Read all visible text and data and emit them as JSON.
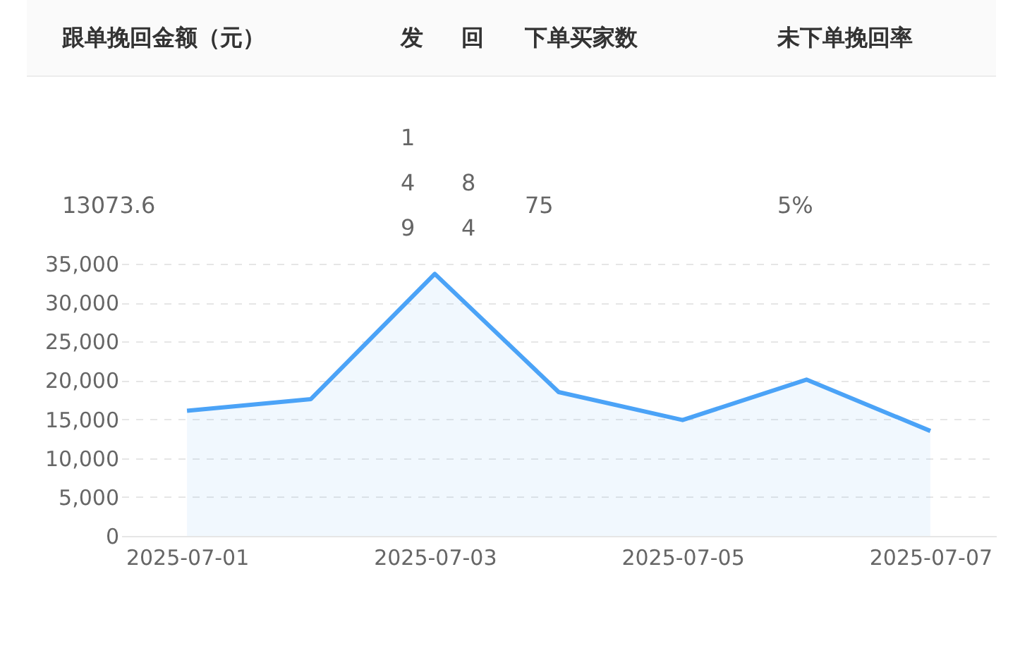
{
  "chart_data": [
    {
      "type": "other",
      "annotations": [
        "跟单挽回金额（元）",
        "发",
        "回",
        "下单买家数",
        "未下单挽回率",
        "13073.6",
        "149",
        "84",
        "75",
        "5%"
      ]
    },
    {
      "type": "area",
      "categories": [
        "2025-07-01",
        null,
        "2025-07-03",
        null,
        "2025-07-05",
        null,
        "2025-07-07"
      ],
      "series": [
        {
          "color": "#4ba3f7",
          "values": [
            16100,
            17600,
            33700,
            18500,
            14900,
            20100,
            13500
          ]
        }
      ],
      "ylim": [
        0,
        35000
      ],
      "yticks": [
        {
          "value": 0,
          "label": "0"
        },
        {
          "value": 5000,
          "label": "5,000"
        },
        {
          "value": 10000,
          "label": "10,000"
        },
        {
          "value": 15000,
          "label": "15,000"
        },
        {
          "value": 20000,
          "label": "20,000"
        },
        {
          "value": 25000,
          "label": "25,000"
        },
        {
          "value": 30000,
          "label": "30,000"
        },
        {
          "value": 35000,
          "label": "35,000"
        }
      ],
      "grid": "y",
      "line_style": "dashed"
    }
  ]
}
